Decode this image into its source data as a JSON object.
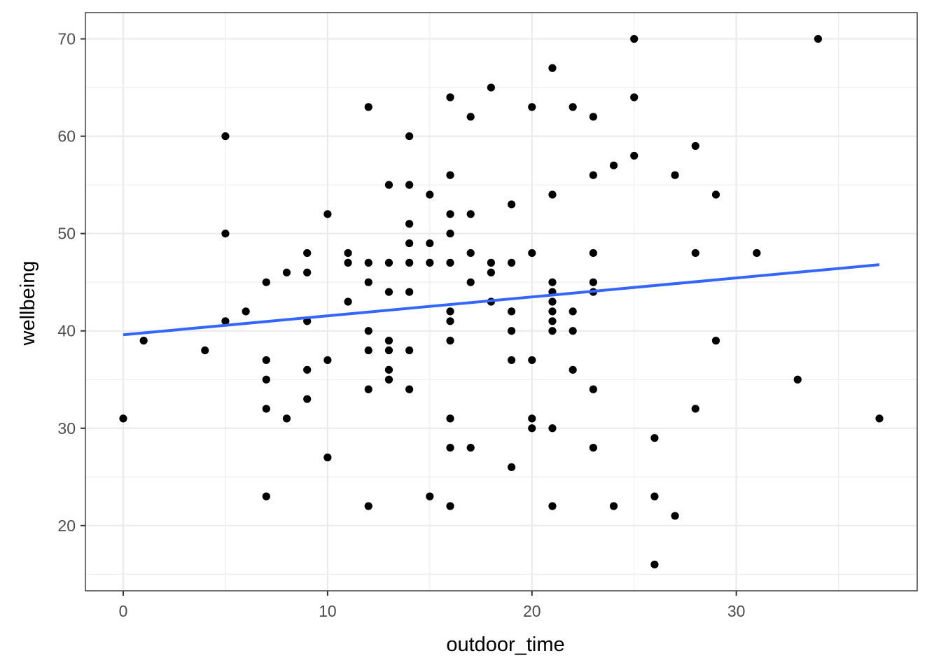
{
  "chart_data": {
    "type": "scatter",
    "xlabel": "outdoor_time",
    "ylabel": "wellbeing",
    "xlim": [
      -1.85,
      38.85
    ],
    "ylim": [
      13.3,
      72.7
    ],
    "x_ticks": [
      0,
      10,
      20,
      30
    ],
    "y_ticks": [
      20,
      30,
      40,
      50,
      60,
      70
    ],
    "x_tick_labels": [
      "0",
      "10",
      "20",
      "30"
    ],
    "y_tick_labels": [
      "20",
      "30",
      "40",
      "50",
      "60",
      "70"
    ],
    "grid": true,
    "legend": "none",
    "colors": {
      "points": "#000000",
      "fit_line": "#3366ff",
      "grid": "#ebebeb",
      "panel_border": "#333333"
    },
    "points": [
      {
        "x": 0,
        "y": 31
      },
      {
        "x": 1,
        "y": 39
      },
      {
        "x": 4,
        "y": 38
      },
      {
        "x": 5,
        "y": 60
      },
      {
        "x": 5,
        "y": 50
      },
      {
        "x": 5,
        "y": 41
      },
      {
        "x": 6,
        "y": 42
      },
      {
        "x": 7,
        "y": 45
      },
      {
        "x": 7,
        "y": 37
      },
      {
        "x": 7,
        "y": 35
      },
      {
        "x": 7,
        "y": 32
      },
      {
        "x": 7,
        "y": 23
      },
      {
        "x": 8,
        "y": 46
      },
      {
        "x": 8,
        "y": 31
      },
      {
        "x": 9,
        "y": 48
      },
      {
        "x": 9,
        "y": 46
      },
      {
        "x": 9,
        "y": 41
      },
      {
        "x": 9,
        "y": 36
      },
      {
        "x": 9,
        "y": 33
      },
      {
        "x": 10,
        "y": 52
      },
      {
        "x": 10,
        "y": 37
      },
      {
        "x": 10,
        "y": 27
      },
      {
        "x": 11,
        "y": 48
      },
      {
        "x": 11,
        "y": 47
      },
      {
        "x": 11,
        "y": 43
      },
      {
        "x": 12,
        "y": 63
      },
      {
        "x": 12,
        "y": 47
      },
      {
        "x": 12,
        "y": 45
      },
      {
        "x": 12,
        "y": 40
      },
      {
        "x": 12,
        "y": 38
      },
      {
        "x": 12,
        "y": 34
      },
      {
        "x": 12,
        "y": 22
      },
      {
        "x": 13,
        "y": 55
      },
      {
        "x": 13,
        "y": 47
      },
      {
        "x": 13,
        "y": 44
      },
      {
        "x": 13,
        "y": 39
      },
      {
        "x": 13,
        "y": 38
      },
      {
        "x": 13,
        "y": 36
      },
      {
        "x": 13,
        "y": 35
      },
      {
        "x": 14,
        "y": 60
      },
      {
        "x": 14,
        "y": 55
      },
      {
        "x": 14,
        "y": 51
      },
      {
        "x": 14,
        "y": 49
      },
      {
        "x": 14,
        "y": 47
      },
      {
        "x": 14,
        "y": 44
      },
      {
        "x": 14,
        "y": 38
      },
      {
        "x": 14,
        "y": 34
      },
      {
        "x": 15,
        "y": 54
      },
      {
        "x": 15,
        "y": 49
      },
      {
        "x": 15,
        "y": 47
      },
      {
        "x": 15,
        "y": 23
      },
      {
        "x": 16,
        "y": 64
      },
      {
        "x": 16,
        "y": 56
      },
      {
        "x": 16,
        "y": 52
      },
      {
        "x": 16,
        "y": 50
      },
      {
        "x": 16,
        "y": 47
      },
      {
        "x": 16,
        "y": 42
      },
      {
        "x": 16,
        "y": 41
      },
      {
        "x": 16,
        "y": 39
      },
      {
        "x": 16,
        "y": 31
      },
      {
        "x": 16,
        "y": 28
      },
      {
        "x": 16,
        "y": 22
      },
      {
        "x": 17,
        "y": 62
      },
      {
        "x": 17,
        "y": 52
      },
      {
        "x": 17,
        "y": 48
      },
      {
        "x": 17,
        "y": 45
      },
      {
        "x": 17,
        "y": 28
      },
      {
        "x": 18,
        "y": 65
      },
      {
        "x": 18,
        "y": 47
      },
      {
        "x": 18,
        "y": 46
      },
      {
        "x": 18,
        "y": 43
      },
      {
        "x": 19,
        "y": 53
      },
      {
        "x": 19,
        "y": 47
      },
      {
        "x": 19,
        "y": 42
      },
      {
        "x": 19,
        "y": 40
      },
      {
        "x": 19,
        "y": 37
      },
      {
        "x": 19,
        "y": 26
      },
      {
        "x": 20,
        "y": 63
      },
      {
        "x": 20,
        "y": 48
      },
      {
        "x": 20,
        "y": 37
      },
      {
        "x": 20,
        "y": 31
      },
      {
        "x": 20,
        "y": 30
      },
      {
        "x": 21,
        "y": 67
      },
      {
        "x": 21,
        "y": 54
      },
      {
        "x": 21,
        "y": 45
      },
      {
        "x": 21,
        "y": 44
      },
      {
        "x": 21,
        "y": 43
      },
      {
        "x": 21,
        "y": 42
      },
      {
        "x": 21,
        "y": 41
      },
      {
        "x": 21,
        "y": 40
      },
      {
        "x": 21,
        "y": 30
      },
      {
        "x": 21,
        "y": 22
      },
      {
        "x": 22,
        "y": 63
      },
      {
        "x": 22,
        "y": 42
      },
      {
        "x": 22,
        "y": 40
      },
      {
        "x": 22,
        "y": 36
      },
      {
        "x": 23,
        "y": 62
      },
      {
        "x": 23,
        "y": 56
      },
      {
        "x": 23,
        "y": 48
      },
      {
        "x": 23,
        "y": 45
      },
      {
        "x": 23,
        "y": 44
      },
      {
        "x": 23,
        "y": 34
      },
      {
        "x": 23,
        "y": 28
      },
      {
        "x": 24,
        "y": 57
      },
      {
        "x": 24,
        "y": 22
      },
      {
        "x": 25,
        "y": 70
      },
      {
        "x": 25,
        "y": 64
      },
      {
        "x": 25,
        "y": 58
      },
      {
        "x": 26,
        "y": 29
      },
      {
        "x": 26,
        "y": 23
      },
      {
        "x": 26,
        "y": 16
      },
      {
        "x": 27,
        "y": 56
      },
      {
        "x": 27,
        "y": 21
      },
      {
        "x": 28,
        "y": 59
      },
      {
        "x": 28,
        "y": 48
      },
      {
        "x": 28,
        "y": 32
      },
      {
        "x": 29,
        "y": 54
      },
      {
        "x": 29,
        "y": 39
      },
      {
        "x": 31,
        "y": 48
      },
      {
        "x": 33,
        "y": 35
      },
      {
        "x": 34,
        "y": 70
      },
      {
        "x": 37,
        "y": 31
      }
    ],
    "fit_line": {
      "method": "linear",
      "x": [
        0,
        37
      ],
      "y": [
        39.6,
        46.8
      ]
    }
  }
}
